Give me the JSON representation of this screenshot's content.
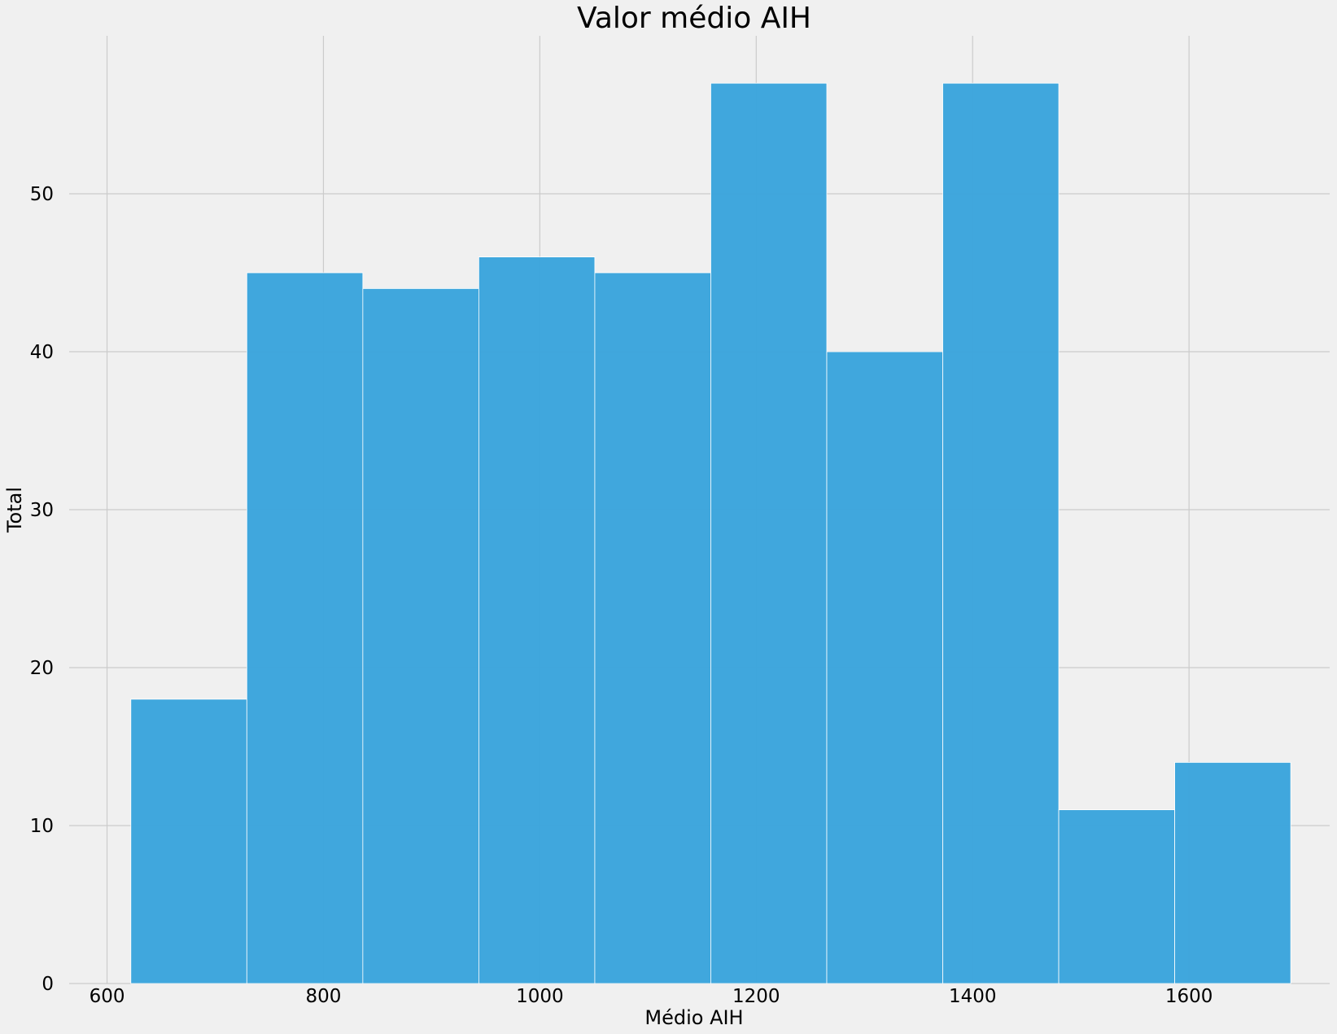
{
  "chart_data": {
    "type": "bar",
    "title": "Valor médio AIH",
    "xlabel": "Médio AIH",
    "ylabel": "Total",
    "bin_edges": [
      622,
      729.2,
      836.4,
      943.6,
      1050.8,
      1158,
      1265.2,
      1372.4,
      1479.6,
      1586.8,
      1694
    ],
    "values": [
      18,
      45,
      44,
      46,
      45,
      57,
      40,
      57,
      11,
      14
    ],
    "xlim": [
      565,
      1730
    ],
    "ylim": [
      0,
      60
    ],
    "xticks": [
      600,
      800,
      1000,
      1200,
      1400,
      1600
    ],
    "yticks": [
      0,
      10,
      20,
      30,
      40,
      50
    ],
    "grid": true,
    "colors": {
      "bar": "#3ca5dc",
      "bar_edge": "#ffffff",
      "grid": "#cbcbcb",
      "background": "#f0f0f0"
    }
  }
}
